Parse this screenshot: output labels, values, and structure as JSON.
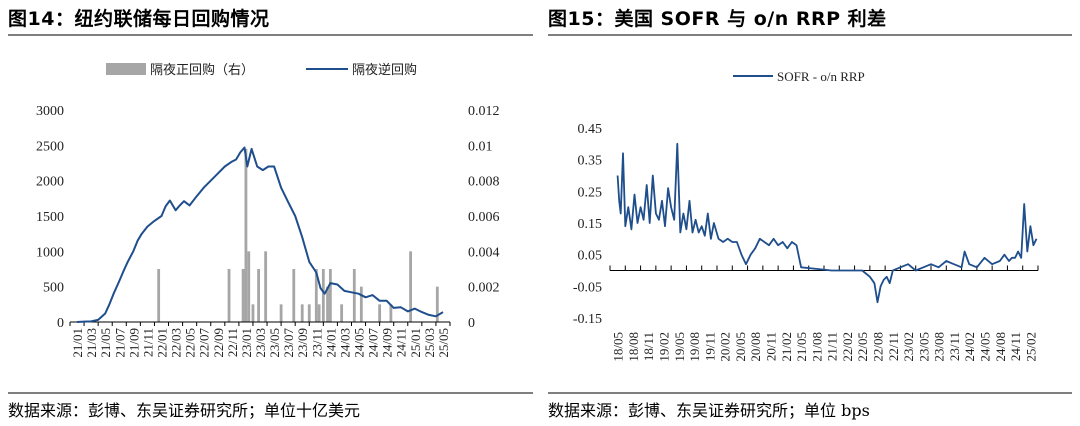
{
  "left_panel": {
    "title": "图14：纽约联储每日回购情况",
    "source": "数据来源：彭博、东吴证券研究所；单位十亿美元"
  },
  "right_panel": {
    "title": "图15：美国 SOFR 与 o/n RRP 利差",
    "source": "数据来源：彭博、东吴证券研究所；单位 bps"
  },
  "chart_data": [
    {
      "type": "bar+line",
      "title": "图14：纽约联储每日回购情况",
      "categories": [
        "21/01",
        "21/03",
        "21/05",
        "21/07",
        "21/09",
        "21/11",
        "22/01",
        "22/03",
        "22/05",
        "22/07",
        "22/09",
        "22/11",
        "23/01",
        "23/03",
        "23/05",
        "23/07",
        "23/09",
        "23/11",
        "24/01",
        "24/03",
        "24/05",
        "24/07",
        "24/09",
        "24/11",
        "25/01",
        "25/03",
        "25/05"
      ],
      "ylim_left": [
        0,
        3000
      ],
      "yticks_left": [
        "0",
        "500",
        "1000",
        "1500",
        "2000",
        "2500",
        "3000"
      ],
      "ylim_right": [
        0,
        0.012
      ],
      "yticks_right": [
        "0",
        "0.002",
        "0.004",
        "0.006",
        "0.008",
        "0.01",
        "0.012"
      ],
      "legend": {
        "position": "top",
        "bar_label": "隔夜正回购（右）",
        "line_label": "隔夜逆回购"
      },
      "colors": {
        "line": "#1f4e8c",
        "bar": "#a6a6a6"
      },
      "line_series": {
        "name": "隔夜逆回购",
        "x": [
          0,
          0.5,
          1,
          1.5,
          2,
          2.3,
          2.6,
          3,
          3.3,
          3.6,
          4,
          4.3,
          4.6,
          5,
          5.5,
          6,
          6.3,
          6.6,
          7,
          7.3,
          7.6,
          8,
          8.5,
          9,
          9.5,
          10,
          10.5,
          11,
          11.3,
          11.6,
          11.9,
          12.1,
          12.4,
          12.8,
          13.2,
          13.6,
          14,
          14.5,
          15,
          15.5,
          16,
          16.5,
          17,
          17.3,
          17.6,
          18,
          18.5,
          19,
          19.5,
          20,
          20.5,
          21,
          21.5,
          22,
          22.5,
          23,
          23.5,
          24,
          24.5,
          25,
          25.5,
          26
        ],
        "values": [
          0,
          5,
          8,
          30,
          120,
          250,
          400,
          580,
          720,
          850,
          1000,
          1150,
          1250,
          1350,
          1430,
          1500,
          1640,
          1720,
          1580,
          1650,
          1710,
          1650,
          1780,
          1900,
          2000,
          2100,
          2200,
          2270,
          2300,
          2400,
          2470,
          2200,
          2450,
          2200,
          2150,
          2200,
          2200,
          1900,
          1700,
          1500,
          1200,
          850,
          700,
          480,
          400,
          550,
          530,
          440,
          420,
          400,
          350,
          380,
          300,
          300,
          200,
          210,
          150,
          190,
          140,
          100,
          80,
          140
        ]
      },
      "bar_series": {
        "name": "隔夜正回购（右）",
        "x": [
          5.8,
          10.8,
          11.8,
          12.0,
          12.2,
          12.5,
          12.9,
          13.4,
          14.5,
          15.4,
          16.0,
          16.5,
          17.0,
          17.2,
          17.5,
          17.8,
          18.0,
          18.8,
          19.7,
          20.2,
          21.5,
          22.3,
          23.7,
          25.6
        ],
        "values": [
          0.003,
          0.003,
          0.003,
          0.0098,
          0.004,
          0.001,
          0.003,
          0.004,
          0.001,
          0.003,
          0.001,
          0.001,
          0.003,
          0.001,
          0.003,
          0.002,
          0.003,
          0.001,
          0.003,
          0.002,
          0.001,
          0.001,
          0.004,
          0.002
        ]
      }
    },
    {
      "type": "line",
      "title": "图15：美国 SOFR 与 o/n RRP 利差",
      "categories": [
        "18/05",
        "18/08",
        "18/11",
        "19/02",
        "19/05",
        "19/08",
        "19/11",
        "20/02",
        "20/05",
        "20/08",
        "20/11",
        "21/02",
        "21/05",
        "21/08",
        "21/11",
        "22/02",
        "22/05",
        "22/08",
        "22/11",
        "23/02",
        "23/05",
        "23/08",
        "23/11",
        "24/02",
        "24/05",
        "24/08",
        "24/11",
        "25/02"
      ],
      "ylim": [
        -0.15,
        0.45
      ],
      "yticks": [
        "-0.15",
        "-0.05",
        "0.05",
        "0.15",
        "0.25",
        "0.35",
        "0.45"
      ],
      "legend": {
        "position": "top",
        "label": "SOFR - o/n RRP"
      },
      "colors": {
        "line": "#1f4e8c"
      },
      "series": [
        {
          "name": "SOFR - o/n RRP",
          "x": [
            0,
            0.1,
            0.2,
            0.35,
            0.5,
            0.7,
            0.9,
            1.1,
            1.3,
            1.5,
            1.7,
            1.9,
            2.1,
            2.3,
            2.5,
            2.7,
            2.9,
            3.1,
            3.3,
            3.5,
            3.7,
            3.9,
            4.1,
            4.3,
            4.5,
            4.7,
            4.9,
            5.1,
            5.3,
            5.5,
            5.7,
            5.9,
            6.1,
            6.3,
            6.6,
            6.9,
            7.2,
            7.5,
            7.8,
            8.1,
            8.4,
            8.7,
            9.0,
            9.3,
            9.6,
            9.9,
            10.2,
            10.5,
            10.8,
            11.1,
            11.4,
            11.7,
            12,
            13,
            14,
            15,
            16,
            16.5,
            16.8,
            17.0,
            17.2,
            17.4,
            17.6,
            17.8,
            18,
            18.5,
            19,
            19.5,
            20,
            20.5,
            21,
            21.5,
            22,
            22.5,
            22.7,
            23,
            23.5,
            24,
            24.5,
            25,
            25.3,
            25.6,
            25.8,
            26,
            26.2,
            26.4,
            26.6,
            26.8,
            27,
            27.2,
            27.4
          ],
          "values": [
            0.3,
            0.22,
            0.18,
            0.37,
            0.14,
            0.2,
            0.13,
            0.24,
            0.15,
            0.2,
            0.16,
            0.27,
            0.15,
            0.3,
            0.18,
            0.16,
            0.22,
            0.14,
            0.26,
            0.2,
            0.16,
            0.4,
            0.12,
            0.18,
            0.13,
            0.22,
            0.12,
            0.16,
            0.12,
            0.14,
            0.11,
            0.18,
            0.1,
            0.15,
            0.1,
            0.09,
            0.1,
            0.09,
            0.09,
            0.05,
            0.02,
            0.05,
            0.07,
            0.1,
            0.09,
            0.08,
            0.1,
            0.08,
            0.09,
            0.07,
            0.09,
            0.08,
            0.01,
            0.005,
            0.0,
            0.0,
            0.0,
            -0.02,
            -0.04,
            -0.1,
            -0.05,
            -0.03,
            -0.02,
            -0.04,
            0.0,
            0.01,
            0.02,
            0.0,
            0.01,
            0.02,
            0.01,
            0.03,
            0.02,
            0.01,
            0.06,
            0.02,
            0.01,
            0.04,
            0.02,
            0.03,
            0.05,
            0.03,
            0.04,
            0.04,
            0.06,
            0.04,
            0.21,
            0.06,
            0.14,
            0.08,
            0.1
          ]
        }
      ]
    }
  ]
}
